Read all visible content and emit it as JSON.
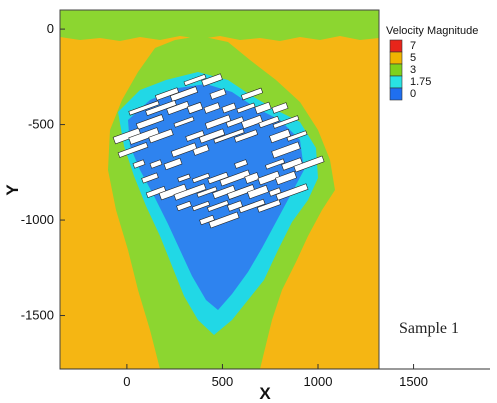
{
  "chart_data": {
    "type": "heatmap",
    "title": "",
    "xlabel": "X",
    "ylabel": "Y",
    "xlim": [
      -350,
      1900
    ],
    "ylim": [
      -1780,
      100
    ],
    "x_ticks": [
      0,
      500,
      1000,
      1500
    ],
    "y_ticks": [
      0,
      -500,
      -1000,
      -1500
    ],
    "x_tick_labels": [
      "0",
      "500",
      "1000",
      "1500"
    ],
    "y_tick_labels": [
      "0",
      "-500",
      "-1000",
      "-1500"
    ],
    "domain_x_extent": [
      -350,
      1290
    ],
    "legend": {
      "title": "Velocity Magnitude",
      "placement": "top-right",
      "levels": [
        {
          "value": 7,
          "label": "7",
          "color": "#e8251a"
        },
        {
          "value": 5,
          "label": "5",
          "color": "#f0b400"
        },
        {
          "value": 3,
          "label": "3",
          "color": "#7fd11b"
        },
        {
          "value": 1.75,
          "label": "1.75",
          "color": "#29e3e3"
        },
        {
          "value": 0,
          "label": "0",
          "color": "#1f6ff0"
        }
      ]
    },
    "annotation": "Sample 1",
    "colors": {
      "far_field": "#f5b613",
      "edge_band": "#8cd630",
      "slow_zone": "#21d8e6",
      "stagnant": "#2e83ef",
      "buildings": "#ffffff"
    }
  }
}
